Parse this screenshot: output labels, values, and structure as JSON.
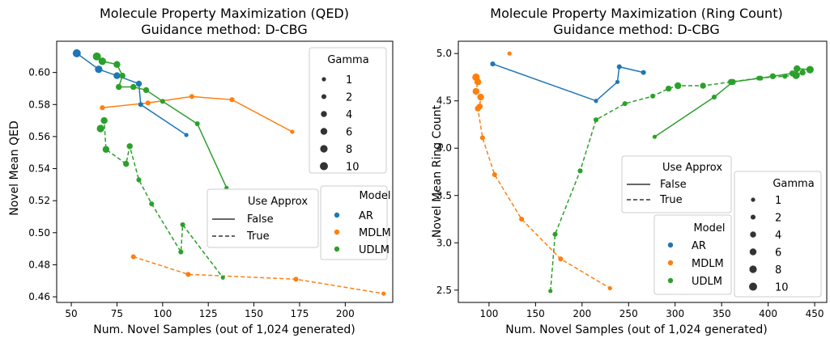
{
  "figure": {
    "colors": {
      "AR": "#1f77b4",
      "MDLM": "#ff7f0e",
      "UDLM": "#2ca02c"
    }
  },
  "chart_data": [
    {
      "type": "line",
      "title": "Molecule Property Maximization (QED)",
      "subtitle": "Guidance method: D-CBG",
      "xlabel": "Num. Novel Samples (out of 1,024 generated)",
      "ylabel": "Novel Mean QED",
      "xlim": [
        42,
        226
      ],
      "ylim": [
        0.4565,
        0.6195
      ],
      "xticks": [
        50,
        75,
        100,
        125,
        150,
        175,
        200
      ],
      "xtick_labels": [
        "50",
        "75",
        "100",
        "125",
        "150",
        "175",
        "200"
      ],
      "yticks": [
        0.46,
        0.48,
        0.5,
        0.52,
        0.54,
        0.56,
        0.58,
        0.6
      ],
      "ytick_labels": [
        "0.46",
        "0.48",
        "0.50",
        "0.52",
        "0.54",
        "0.56",
        "0.58",
        "0.60"
      ],
      "series": [
        {
          "name": "AR",
          "model": "AR",
          "use_approx": false,
          "points": [
            {
              "x": 53,
              "y": 0.612,
              "gamma": 10
            },
            {
              "x": 65,
              "y": 0.602,
              "gamma": 8
            },
            {
              "x": 75,
              "y": 0.598,
              "gamma": 6
            },
            {
              "x": 87,
              "y": 0.593,
              "gamma": 4
            },
            {
              "x": 88,
              "y": 0.58,
              "gamma": 2
            },
            {
              "x": 113,
              "y": 0.561,
              "gamma": 1
            }
          ]
        },
        {
          "name": "MDLM",
          "model": "MDLM",
          "use_approx": false,
          "points": [
            {
              "x": 67,
              "y": 0.578,
              "gamma": 2
            },
            {
              "x": 92,
              "y": 0.581,
              "gamma": 2
            },
            {
              "x": 116,
              "y": 0.585,
              "gamma": 2
            },
            {
              "x": 138,
              "y": 0.583,
              "gamma": 2
            },
            {
              "x": 171,
              "y": 0.563,
              "gamma": 1
            }
          ]
        },
        {
          "name": "UDLM",
          "model": "UDLM",
          "use_approx": false,
          "points": [
            {
              "x": 64,
              "y": 0.61,
              "gamma": 10
            },
            {
              "x": 67,
              "y": 0.607,
              "gamma": 8
            },
            {
              "x": 75,
              "y": 0.605,
              "gamma": 6
            },
            {
              "x": 78,
              "y": 0.598,
              "gamma": 4
            },
            {
              "x": 76,
              "y": 0.591,
              "gamma": 4
            },
            {
              "x": 84,
              "y": 0.591,
              "gamma": 4
            },
            {
              "x": 91,
              "y": 0.589,
              "gamma": 4
            },
            {
              "x": 100,
              "y": 0.582,
              "gamma": 2
            },
            {
              "x": 119,
              "y": 0.568,
              "gamma": 2
            },
            {
              "x": 135,
              "y": 0.528,
              "gamma": 1
            }
          ]
        },
        {
          "name": "MDLM",
          "model": "MDLM",
          "use_approx": true,
          "points": [
            {
              "x": 84,
              "y": 0.485,
              "gamma": 2
            },
            {
              "x": 114,
              "y": 0.474,
              "gamma": 2
            },
            {
              "x": 173,
              "y": 0.471,
              "gamma": 2
            },
            {
              "x": 221,
              "y": 0.462,
              "gamma": 1
            }
          ]
        },
        {
          "name": "UDLM",
          "model": "UDLM",
          "use_approx": true,
          "points": [
            {
              "x": 66,
              "y": 0.565,
              "gamma": 8
            },
            {
              "x": 68,
              "y": 0.57,
              "gamma": 6
            },
            {
              "x": 69,
              "y": 0.552,
              "gamma": 6
            },
            {
              "x": 80,
              "y": 0.543,
              "gamma": 4
            },
            {
              "x": 82,
              "y": 0.554,
              "gamma": 4
            },
            {
              "x": 87,
              "y": 0.533,
              "gamma": 2
            },
            {
              "x": 94,
              "y": 0.518,
              "gamma": 2
            },
            {
              "x": 110,
              "y": 0.488,
              "gamma": 2
            },
            {
              "x": 111,
              "y": 0.505,
              "gamma": 2
            },
            {
              "x": 133,
              "y": 0.472,
              "gamma": 1
            }
          ]
        }
      ],
      "legend_gamma": {
        "title": "Gamma",
        "entries": [
          "1",
          "2",
          "4",
          "6",
          "8",
          "10"
        ],
        "placement": "top-right"
      },
      "legend_approx": {
        "title": "Use Approx",
        "entries": [
          "False",
          "True"
        ],
        "placement": "center-right"
      },
      "legend_model": {
        "title": "Model",
        "entries": [
          "AR",
          "MDLM",
          "UDLM"
        ],
        "placement": "center-right"
      }
    },
    {
      "type": "line",
      "title": "Molecule Property Maximization (Ring Count)",
      "subtitle": "Guidance method: D-CBG",
      "xlabel": "Num. Novel Samples (out of 1,024 generated)",
      "ylabel": "Novel Mean Ring Count",
      "xlim": [
        67,
        463
      ],
      "ylim": [
        2.37,
        5.13
      ],
      "xticks": [
        100,
        150,
        200,
        250,
        300,
        350,
        400,
        450
      ],
      "xtick_labels": [
        "100",
        "150",
        "200",
        "250",
        "300",
        "350",
        "400",
        "450"
      ],
      "yticks": [
        2.5,
        3.0,
        3.5,
        4.0,
        4.5,
        5.0
      ],
      "ytick_labels": [
        "2.5",
        "3.0",
        "3.5",
        "4.0",
        "4.5",
        "5.0"
      ],
      "series": [
        {
          "name": "AR",
          "model": "AR",
          "use_approx": false,
          "points": [
            {
              "x": 104,
              "y": 4.89,
              "gamma": 2
            },
            {
              "x": 215,
              "y": 4.5,
              "gamma": 1
            },
            {
              "x": 238,
              "y": 4.7,
              "gamma": 1
            },
            {
              "x": 240,
              "y": 4.86,
              "gamma": 2
            },
            {
              "x": 266,
              "y": 4.8,
              "gamma": 2
            }
          ]
        },
        {
          "name": "MDLM",
          "model": "MDLM",
          "use_approx": false,
          "points": [
            {
              "x": 122,
              "y": 5.0,
              "gamma": 1
            }
          ]
        },
        {
          "name": "UDLM",
          "model": "UDLM",
          "use_approx": false,
          "points": [
            {
              "x": 278,
              "y": 4.12,
              "gamma": 1
            },
            {
              "x": 342,
              "y": 4.54,
              "gamma": 2
            },
            {
              "x": 362,
              "y": 4.7,
              "gamma": 4
            },
            {
              "x": 392,
              "y": 4.74,
              "gamma": 2
            },
            {
              "x": 405,
              "y": 4.76,
              "gamma": 4
            },
            {
              "x": 426,
              "y": 4.79,
              "gamma": 4
            },
            {
              "x": 431,
              "y": 4.84,
              "gamma": 6
            },
            {
              "x": 445,
              "y": 4.83,
              "gamma": 8
            }
          ]
        },
        {
          "name": "MDLM",
          "model": "MDLM",
          "use_approx": true,
          "points": [
            {
              "x": 86,
              "y": 4.75,
              "gamma": 8
            },
            {
              "x": 88,
              "y": 4.7,
              "gamma": 6
            },
            {
              "x": 86,
              "y": 4.6,
              "gamma": 6
            },
            {
              "x": 91,
              "y": 4.54,
              "gamma": 6
            },
            {
              "x": 90,
              "y": 4.44,
              "gamma": 4
            },
            {
              "x": 88,
              "y": 4.42,
              "gamma": 4
            },
            {
              "x": 93,
              "y": 4.11,
              "gamma": 2
            },
            {
              "x": 106,
              "y": 3.72,
              "gamma": 2
            },
            {
              "x": 135,
              "y": 3.25,
              "gamma": 2
            },
            {
              "x": 177,
              "y": 2.83,
              "gamma": 2
            },
            {
              "x": 230,
              "y": 2.52,
              "gamma": 1
            }
          ]
        },
        {
          "name": "UDLM",
          "model": "UDLM",
          "use_approx": true,
          "points": [
            {
              "x": 166,
              "y": 2.49,
              "gamma": 1
            },
            {
              "x": 171,
              "y": 3.09,
              "gamma": 2
            },
            {
              "x": 198,
              "y": 3.76,
              "gamma": 2
            },
            {
              "x": 215,
              "y": 4.3,
              "gamma": 2
            },
            {
              "x": 246,
              "y": 4.47,
              "gamma": 2
            },
            {
              "x": 276,
              "y": 4.55,
              "gamma": 2
            },
            {
              "x": 293,
              "y": 4.63,
              "gamma": 4
            },
            {
              "x": 303,
              "y": 4.66,
              "gamma": 6
            },
            {
              "x": 330,
              "y": 4.66,
              "gamma": 4
            },
            {
              "x": 360,
              "y": 4.7,
              "gamma": 4
            },
            {
              "x": 390,
              "y": 4.74,
              "gamma": 2
            },
            {
              "x": 418,
              "y": 4.76,
              "gamma": 2
            },
            {
              "x": 430,
              "y": 4.77,
              "gamma": 8
            },
            {
              "x": 437,
              "y": 4.8,
              "gamma": 4
            }
          ]
        }
      ],
      "legend_approx": {
        "title": "Use Approx",
        "entries": [
          "False",
          "True"
        ],
        "placement": "center"
      },
      "legend_gamma": {
        "title": "Gamma",
        "entries": [
          "1",
          "2",
          "4",
          "6",
          "8",
          "10"
        ],
        "placement": "bottom-right"
      },
      "legend_model": {
        "title": "Model",
        "entries": [
          "AR",
          "MDLM",
          "UDLM"
        ],
        "placement": "bottom-center"
      }
    }
  ]
}
